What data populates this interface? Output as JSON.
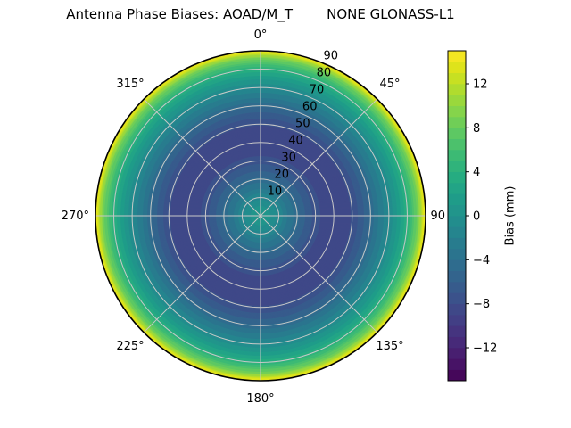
{
  "chart_data": {
    "type": "heatmap",
    "projection": "polar",
    "title": "Antenna Phase Biases: AOAD/M_T        NONE GLONASS-L1",
    "angular_ticks": [
      {
        "label": "0°",
        "angle_deg": 0
      },
      {
        "label": "45°",
        "angle_deg": 45
      },
      {
        "label": "90",
        "angle_deg": 90
      },
      {
        "label": "135°",
        "angle_deg": 135
      },
      {
        "label": "180°",
        "angle_deg": 180
      },
      {
        "label": "225°",
        "angle_deg": 225
      },
      {
        "label": "270°",
        "angle_deg": 270
      },
      {
        "label": "315°",
        "angle_deg": 315
      }
    ],
    "radial_ticks": [
      "10",
      "20",
      "30",
      "40",
      "50",
      "60",
      "70",
      "80",
      "90"
    ],
    "radial_axis_max_deg": 90,
    "colorbar": {
      "label": "Bias (mm)",
      "tick_labels": [
        "12",
        "8",
        "4",
        "0",
        "−4",
        "−8",
        "−12"
      ],
      "tick_values": [
        12,
        8,
        4,
        0,
        -4,
        -8,
        -12
      ],
      "vmin": -15,
      "vmax": 15,
      "level_step_mm": 1,
      "colormap": "viridis"
    },
    "symmetry": "azimuthally uniform (concentric elevation-dependent rings)",
    "radial_profile_mm": [
      [
        0,
        0.4
      ],
      [
        5,
        0.1
      ],
      [
        10,
        -1.2
      ],
      [
        15,
        -3.0
      ],
      [
        20,
        -4.6
      ],
      [
        25,
        -6.2
      ],
      [
        30,
        -7.4
      ],
      [
        35,
        -8.4
      ],
      [
        40,
        -8.8
      ],
      [
        46,
        -8.8
      ],
      [
        52,
        -7.4
      ],
      [
        56,
        -6.2
      ],
      [
        60,
        -4.8
      ],
      [
        64,
        -3.2
      ],
      [
        68,
        -1.7
      ],
      [
        71,
        -0.6
      ],
      [
        74,
        0.7
      ],
      [
        77,
        2.2
      ],
      [
        80,
        3.9
      ],
      [
        83,
        6.0
      ],
      [
        85,
        7.8
      ],
      [
        86.5,
        9.2
      ],
      [
        88,
        11.3
      ],
      [
        89,
        13.0
      ],
      [
        90,
        14.4
      ]
    ],
    "viridis_stops": [
      [
        0.0,
        "#440154"
      ],
      [
        0.0627,
        "#48186a"
      ],
      [
        0.1255,
        "#472d7b"
      ],
      [
        0.1882,
        "#424086"
      ],
      [
        0.251,
        "#3b528b"
      ],
      [
        0.3137,
        "#33638d"
      ],
      [
        0.3765,
        "#2c728e"
      ],
      [
        0.4392,
        "#26828e"
      ],
      [
        0.502,
        "#21918c"
      ],
      [
        0.5647,
        "#1fa088"
      ],
      [
        0.6275,
        "#28ae80"
      ],
      [
        0.6902,
        "#3fbc73"
      ],
      [
        0.7529,
        "#5ec962"
      ],
      [
        0.8157,
        "#84d44b"
      ],
      [
        0.8784,
        "#addc30"
      ],
      [
        0.9412,
        "#d8e219"
      ],
      [
        1.0,
        "#fde725"
      ]
    ],
    "grid_color": "#c8c8c8",
    "outline_color": "#000000",
    "background": "#ffffff"
  }
}
